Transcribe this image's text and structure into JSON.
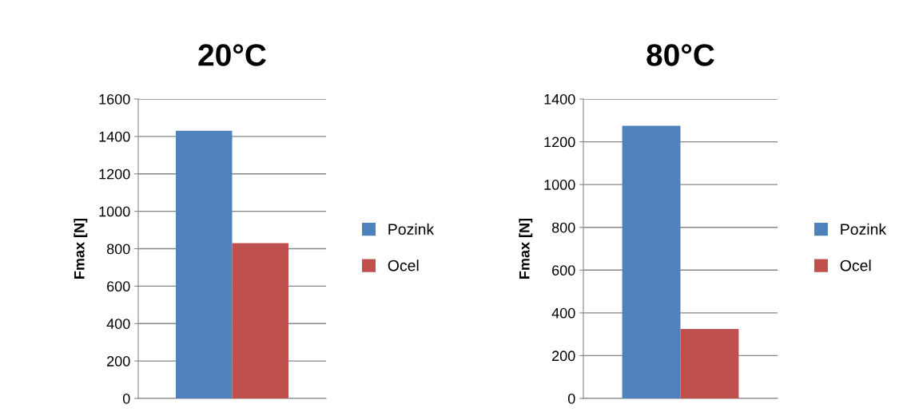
{
  "chart_data": [
    {
      "type": "bar",
      "title": "20°C",
      "ylabel": "Fmax [N]",
      "categories": [
        null
      ],
      "series": [
        {
          "name": "Pozink",
          "color": "#4f81bd",
          "values": [
            1430
          ]
        },
        {
          "name": "Ocel",
          "color": "#c0504d",
          "values": [
            830
          ]
        }
      ],
      "ylim": [
        0,
        1600
      ],
      "yticks": [
        0,
        200,
        400,
        600,
        800,
        1000,
        1200,
        1400,
        1600
      ],
      "grid": "y",
      "legend": "right"
    },
    {
      "type": "bar",
      "title": "80°C",
      "ylabel": "Fmax [N]",
      "categories": [
        null
      ],
      "series": [
        {
          "name": "Pozink",
          "color": "#4f81bd",
          "values": [
            1275
          ]
        },
        {
          "name": "Ocel",
          "color": "#c0504d",
          "values": [
            325
          ]
        }
      ],
      "ylim": [
        0,
        1400
      ],
      "yticks": [
        0,
        200,
        400,
        600,
        800,
        1000,
        1200,
        1400
      ],
      "grid": "y",
      "legend": "right"
    }
  ]
}
